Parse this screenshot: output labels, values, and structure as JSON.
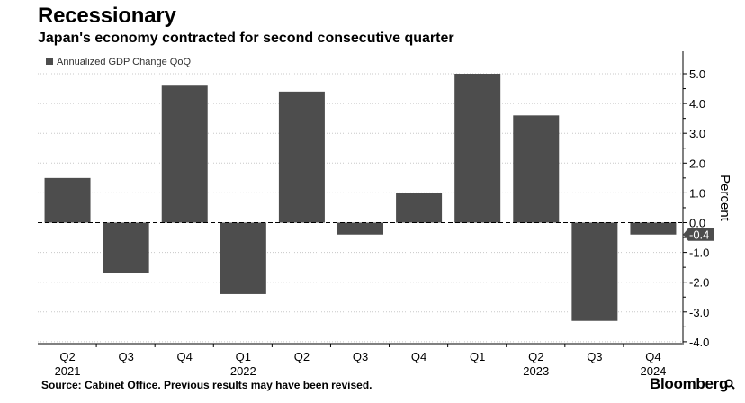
{
  "header": {
    "title": "Recessionary",
    "subtitle": "Japan's economy contracted for second consecutive quarter"
  },
  "footer": {
    "source": "Source: Cabinet Office. Previous results may have been revised.",
    "brand": "Bloomberg"
  },
  "icons": {
    "brand_icon": "magnifier-icon"
  },
  "colors": {
    "bar": "#4d4d4d",
    "last_label_bg": "#4d4d4d",
    "last_label_text": "#ffffff"
  },
  "chart_data": {
    "type": "bar",
    "title": "Recessionary",
    "subtitle": "Japan's economy contracted for second consecutive quarter",
    "categories": [
      "Q2",
      "Q3",
      "Q4",
      "Q1",
      "Q2",
      "Q3",
      "Q4",
      "Q1",
      "Q2",
      "Q3",
      "Q4"
    ],
    "year_labels": [
      "2021",
      "",
      "",
      "2022",
      "",
      "",
      "",
      "",
      "2023",
      "",
      "2024"
    ],
    "series": [
      {
        "name": "Annualized GDP Change QoQ",
        "values": [
          1.5,
          -1.7,
          4.6,
          -2.4,
          4.4,
          -0.4,
          1.0,
          5.0,
          3.6,
          -3.3,
          -0.4
        ]
      }
    ],
    "ylabel": "Percent",
    "ylim": [
      -4.0,
      5.0
    ],
    "yticks": [
      "5.0",
      "4.0",
      "3.0",
      "2.0",
      "1.0",
      "0.0",
      "-1.0",
      "-2.0",
      "-3.0",
      "-4.0"
    ],
    "last_value_label": "-0.4",
    "legend_position": "top-left",
    "yaxis_position": "right",
    "grid": "dotted horizontal"
  }
}
